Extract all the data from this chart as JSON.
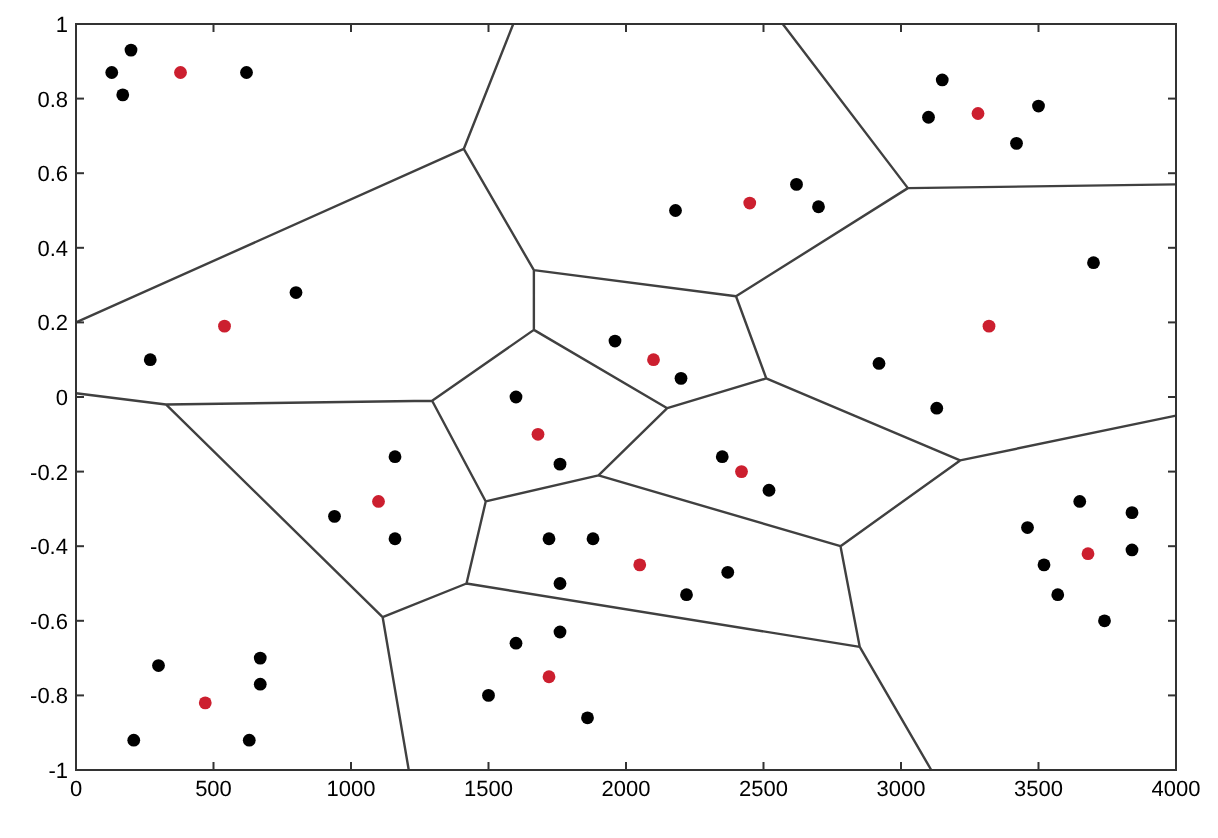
{
  "chart_data": {
    "type": "scatter",
    "xlim": [
      0,
      4000
    ],
    "ylim": [
      -1,
      1
    ],
    "xticks": [
      0,
      500,
      1000,
      1500,
      2000,
      2500,
      3000,
      3500,
      4000
    ],
    "yticks": [
      -1,
      -0.8,
      -0.6,
      -0.4,
      -0.2,
      0,
      0.2,
      0.4,
      0.6,
      0.8,
      1
    ],
    "grid": false,
    "marker": "circle",
    "series": [
      {
        "type": "line",
        "marker": "none",
        "color": "#404040",
        "x": [
          0,
          1410,
          1665,
          2400,
          3025,
          2570,
          null,
          1590,
          1410,
          null,
          1665,
          1665,
          1295,
          327,
          0,
          null,
          1665,
          2150,
          1900,
          1490,
          1295,
          null,
          3025,
          4000,
          null,
          2400,
          2510,
          3215,
          4000,
          null,
          2510,
          2150,
          null,
          1900,
          2780,
          3215,
          null,
          2780,
          2850,
          3110,
          null,
          2850,
          1420,
          1490,
          null,
          1420,
          1115,
          1210,
          null,
          1115,
          327
        ],
        "values": [
          0.2,
          0.665,
          0.34,
          0.27,
          0.56,
          1,
          null,
          1,
          0.665,
          null,
          0.34,
          0.18,
          -0.01,
          -0.02,
          0.01,
          null,
          0.18,
          -0.03,
          -0.21,
          -0.28,
          -0.01,
          null,
          0.56,
          0.57,
          null,
          0.27,
          0.05,
          -0.17,
          -0.05,
          null,
          0.05,
          -0.03,
          null,
          -0.21,
          -0.4,
          -0.17,
          null,
          -0.4,
          -0.67,
          -1,
          null,
          -0.67,
          -0.5,
          -0.28,
          null,
          -0.5,
          -0.59,
          -1,
          null,
          -0.59,
          -0.02
        ]
      },
      {
        "color": "#000000",
        "x": [
          130,
          200,
          170,
          620,
          800,
          270,
          2180,
          2620,
          2700,
          3100,
          3150,
          3500,
          3420,
          3700,
          2920,
          3130,
          1960,
          2200,
          1600,
          1760,
          1160,
          940,
          1160,
          1720,
          1880,
          1760,
          2350,
          2520,
          2370,
          2220,
          1600,
          1760,
          1500,
          1860,
          3650,
          3460,
          3840,
          3520,
          3570,
          3840,
          3740,
          300,
          670,
          670,
          210,
          630
        ],
        "values": [
          0.87,
          0.93,
          0.81,
          0.87,
          0.28,
          0.1,
          0.5,
          0.57,
          0.51,
          0.75,
          0.85,
          0.78,
          0.68,
          0.36,
          0.09,
          -0.03,
          0.15,
          0.05,
          0,
          -0.18,
          -0.16,
          -0.32,
          -0.38,
          -0.38,
          -0.38,
          -0.5,
          -0.16,
          -0.25,
          -0.47,
          -0.53,
          -0.66,
          -0.63,
          -0.8,
          -0.86,
          -0.28,
          -0.35,
          -0.31,
          -0.45,
          -0.53,
          -0.41,
          -0.6,
          -0.72,
          -0.7,
          -0.77,
          -0.92,
          -0.92
        ]
      },
      {
        "color": "#cc1f2f",
        "x": [
          380,
          540,
          1100,
          1680,
          2100,
          2450,
          3280,
          3320,
          2420,
          3680,
          2050,
          1720,
          470
        ],
        "values": [
          0.87,
          0.19,
          -0.28,
          -0.1,
          0.1,
          0.52,
          0.76,
          0.19,
          -0.2,
          -0.42,
          -0.45,
          -0.75,
          -0.82
        ]
      }
    ]
  }
}
